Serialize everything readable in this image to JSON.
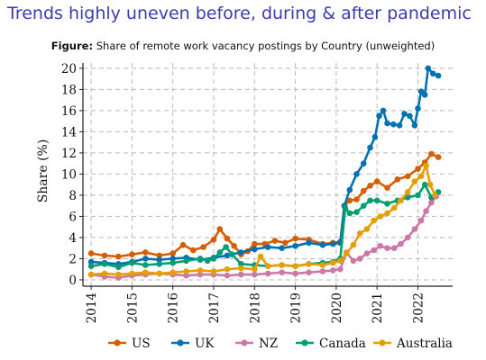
{
  "slide": {
    "title": "Trends highly uneven before, during & after pandemic"
  },
  "figure": {
    "label": "Figure:",
    "caption": "Share of remote work vacancy postings by Country (unweighted)"
  },
  "chart_data": {
    "type": "line",
    "title": "Share of remote work vacancy postings by Country (unweighted)",
    "xlabel": "",
    "ylabel": "Share (%)",
    "xlim": [
      2013.8,
      2022.85
    ],
    "ylim": [
      -0.6,
      20.5
    ],
    "x_ticks": [
      2014,
      2015,
      2016,
      2017,
      2018,
      2019,
      2020,
      2021,
      2022
    ],
    "y_ticks": [
      0,
      2,
      4,
      6,
      8,
      10,
      12,
      14,
      16,
      18,
      20
    ],
    "grid": true,
    "legend_position": "bottom",
    "markers": true,
    "series": [
      {
        "name": "US",
        "color": "#d55e00",
        "points": [
          [
            2014.0,
            2.5
          ],
          [
            2014.33,
            2.3
          ],
          [
            2014.67,
            2.2
          ],
          [
            2015.0,
            2.4
          ],
          [
            2015.33,
            2.6
          ],
          [
            2015.67,
            2.3
          ],
          [
            2016.0,
            2.5
          ],
          [
            2016.25,
            3.3
          ],
          [
            2016.5,
            2.8
          ],
          [
            2016.75,
            3.1
          ],
          [
            2017.0,
            3.8
          ],
          [
            2017.15,
            4.8
          ],
          [
            2017.33,
            3.9
          ],
          [
            2017.5,
            3.2
          ],
          [
            2017.67,
            2.4
          ],
          [
            2017.83,
            2.7
          ],
          [
            2018.0,
            3.4
          ],
          [
            2018.25,
            3.4
          ],
          [
            2018.5,
            3.7
          ],
          [
            2018.75,
            3.5
          ],
          [
            2019.0,
            3.9
          ],
          [
            2019.33,
            3.8
          ],
          [
            2019.67,
            3.4
          ],
          [
            2019.92,
            3.5
          ],
          [
            2020.1,
            3.6
          ],
          [
            2020.2,
            7.0
          ],
          [
            2020.33,
            7.5
          ],
          [
            2020.5,
            7.6
          ],
          [
            2020.67,
            8.4
          ],
          [
            2020.83,
            8.9
          ],
          [
            2021.0,
            9.3
          ],
          [
            2021.25,
            8.7
          ],
          [
            2021.5,
            9.5
          ],
          [
            2021.75,
            9.8
          ],
          [
            2022.0,
            10.5
          ],
          [
            2022.17,
            11.1
          ],
          [
            2022.33,
            11.9
          ],
          [
            2022.5,
            11.6
          ]
        ]
      },
      {
        "name": "UK",
        "color": "#0072b2",
        "points": [
          [
            2014.0,
            1.7
          ],
          [
            2014.33,
            1.6
          ],
          [
            2014.67,
            1.5
          ],
          [
            2015.0,
            1.7
          ],
          [
            2015.33,
            2.0
          ],
          [
            2015.67,
            1.9
          ],
          [
            2016.0,
            2.0
          ],
          [
            2016.33,
            2.1
          ],
          [
            2016.67,
            1.9
          ],
          [
            2017.0,
            2.1
          ],
          [
            2017.33,
            2.3
          ],
          [
            2017.67,
            2.6
          ],
          [
            2018.0,
            2.9
          ],
          [
            2018.33,
            3.1
          ],
          [
            2018.67,
            3.0
          ],
          [
            2019.0,
            3.2
          ],
          [
            2019.33,
            3.5
          ],
          [
            2019.67,
            3.3
          ],
          [
            2019.92,
            3.4
          ],
          [
            2020.1,
            3.5
          ],
          [
            2020.2,
            7.0
          ],
          [
            2020.33,
            8.5
          ],
          [
            2020.5,
            10.0
          ],
          [
            2020.67,
            11.0
          ],
          [
            2020.83,
            12.5
          ],
          [
            2020.95,
            13.5
          ],
          [
            2021.05,
            15.5
          ],
          [
            2021.15,
            16.0
          ],
          [
            2021.25,
            14.8
          ],
          [
            2021.4,
            14.7
          ],
          [
            2021.55,
            14.6
          ],
          [
            2021.67,
            15.7
          ],
          [
            2021.8,
            15.5
          ],
          [
            2021.92,
            14.6
          ],
          [
            2022.0,
            16.2
          ],
          [
            2022.08,
            17.8
          ],
          [
            2022.17,
            17.5
          ],
          [
            2022.25,
            20.0
          ],
          [
            2022.37,
            19.5
          ],
          [
            2022.5,
            19.3
          ]
        ]
      },
      {
        "name": "NZ",
        "color": "#cc79a7",
        "points": [
          [
            2014.0,
            0.5
          ],
          [
            2014.33,
            0.3
          ],
          [
            2014.67,
            0.2
          ],
          [
            2015.0,
            0.4
          ],
          [
            2015.33,
            0.5
          ],
          [
            2015.67,
            0.6
          ],
          [
            2016.0,
            0.5
          ],
          [
            2016.33,
            0.4
          ],
          [
            2016.67,
            0.5
          ],
          [
            2017.0,
            0.5
          ],
          [
            2017.33,
            0.4
          ],
          [
            2017.67,
            0.5
          ],
          [
            2018.0,
            0.5
          ],
          [
            2018.33,
            0.6
          ],
          [
            2018.67,
            0.7
          ],
          [
            2019.0,
            0.6
          ],
          [
            2019.33,
            0.7
          ],
          [
            2019.67,
            0.8
          ],
          [
            2019.92,
            0.9
          ],
          [
            2020.1,
            1.0
          ],
          [
            2020.25,
            2.6
          ],
          [
            2020.42,
            1.8
          ],
          [
            2020.58,
            2.0
          ],
          [
            2020.75,
            2.5
          ],
          [
            2020.92,
            2.8
          ],
          [
            2021.08,
            3.2
          ],
          [
            2021.25,
            3.0
          ],
          [
            2021.42,
            3.0
          ],
          [
            2021.58,
            3.4
          ],
          [
            2021.75,
            4.0
          ],
          [
            2021.92,
            4.8
          ],
          [
            2022.08,
            5.6
          ],
          [
            2022.2,
            6.5
          ],
          [
            2022.33,
            7.3
          ],
          [
            2022.45,
            7.9
          ]
        ]
      },
      {
        "name": "Canada",
        "color": "#009e73",
        "points": [
          [
            2014.0,
            1.3
          ],
          [
            2014.33,
            1.5
          ],
          [
            2014.67,
            1.2
          ],
          [
            2015.0,
            1.6
          ],
          [
            2015.33,
            1.4
          ],
          [
            2015.67,
            1.5
          ],
          [
            2016.0,
            1.6
          ],
          [
            2016.33,
            1.8
          ],
          [
            2016.67,
            2.0
          ],
          [
            2016.85,
            1.8
          ],
          [
            2017.0,
            2.0
          ],
          [
            2017.15,
            2.6
          ],
          [
            2017.3,
            3.1
          ],
          [
            2017.45,
            2.4
          ],
          [
            2017.67,
            1.5
          ],
          [
            2018.0,
            1.4
          ],
          [
            2018.33,
            1.3
          ],
          [
            2018.67,
            1.4
          ],
          [
            2019.0,
            1.3
          ],
          [
            2019.33,
            1.5
          ],
          [
            2019.67,
            1.6
          ],
          [
            2019.92,
            1.7
          ],
          [
            2020.1,
            2.0
          ],
          [
            2020.22,
            6.8
          ],
          [
            2020.33,
            6.3
          ],
          [
            2020.5,
            6.4
          ],
          [
            2020.67,
            7.0
          ],
          [
            2020.83,
            7.5
          ],
          [
            2021.0,
            7.5
          ],
          [
            2021.25,
            7.2
          ],
          [
            2021.5,
            7.5
          ],
          [
            2021.75,
            7.8
          ],
          [
            2022.0,
            8.0
          ],
          [
            2022.17,
            9.0
          ],
          [
            2022.33,
            7.8
          ],
          [
            2022.5,
            8.3
          ]
        ]
      },
      {
        "name": "Australia",
        "color": "#e69f00",
        "points": [
          [
            2014.0,
            0.5
          ],
          [
            2014.33,
            0.6
          ],
          [
            2014.67,
            0.5
          ],
          [
            2015.0,
            0.6
          ],
          [
            2015.33,
            0.7
          ],
          [
            2015.67,
            0.6
          ],
          [
            2016.0,
            0.7
          ],
          [
            2016.33,
            0.8
          ],
          [
            2016.67,
            0.9
          ],
          [
            2017.0,
            0.8
          ],
          [
            2017.33,
            1.0
          ],
          [
            2017.67,
            1.1
          ],
          [
            2018.0,
            1.0
          ],
          [
            2018.15,
            2.2
          ],
          [
            2018.33,
            1.3
          ],
          [
            2018.67,
            1.4
          ],
          [
            2019.0,
            1.3
          ],
          [
            2019.33,
            1.5
          ],
          [
            2019.67,
            1.4
          ],
          [
            2019.92,
            1.6
          ],
          [
            2020.1,
            1.8
          ],
          [
            2020.25,
            2.5
          ],
          [
            2020.42,
            3.3
          ],
          [
            2020.58,
            4.4
          ],
          [
            2020.75,
            4.8
          ],
          [
            2020.92,
            5.6
          ],
          [
            2021.08,
            6.0
          ],
          [
            2021.25,
            6.3
          ],
          [
            2021.42,
            6.8
          ],
          [
            2021.58,
            7.5
          ],
          [
            2021.75,
            8.3
          ],
          [
            2021.92,
            9.3
          ],
          [
            2022.08,
            9.8
          ],
          [
            2022.2,
            10.8
          ],
          [
            2022.3,
            9.0
          ],
          [
            2022.42,
            8.0
          ]
        ]
      }
    ]
  }
}
